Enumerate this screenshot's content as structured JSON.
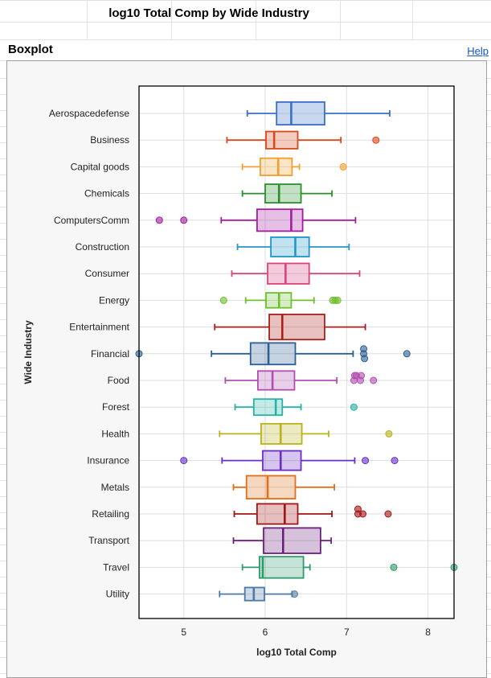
{
  "sheet": {
    "title": "log10 Total Comp by Wide Industry"
  },
  "panel": {
    "title": "Boxplot",
    "help_label": "Help"
  },
  "chart_data": {
    "type": "boxplot",
    "title": "",
    "xlabel": "log10 Total Comp",
    "ylabel": "Wide Industry",
    "xlim": [
      4.45,
      8.32
    ],
    "xticks": [
      5,
      6,
      7,
      8
    ],
    "grid": true,
    "legend": "none",
    "categories": [
      {
        "name": "Utility",
        "color": "#4e79a7",
        "whisker_low": 5.44,
        "q1": 5.75,
        "median": 5.86,
        "q3": 5.99,
        "whisker_high": 6.33,
        "outliers": [
          6.36
        ]
      },
      {
        "name": "Travel",
        "color": "#2e9c6e",
        "whisker_low": 5.72,
        "q1": 5.93,
        "median": 5.97,
        "q3": 6.47,
        "whisker_high": 6.55,
        "outliers": [
          7.58,
          8.32
        ]
      },
      {
        "name": "Transport",
        "color": "#6a1f7a",
        "whisker_low": 5.61,
        "q1": 5.98,
        "median": 6.22,
        "q3": 6.68,
        "whisker_high": 6.81,
        "outliers": []
      },
      {
        "name": "Retailing",
        "color": "#a31515",
        "whisker_low": 5.62,
        "q1": 5.9,
        "median": 6.24,
        "q3": 6.4,
        "whisker_high": 6.82,
        "outliers": [
          7.14,
          7.14,
          7.2,
          7.51
        ]
      },
      {
        "name": "Metals",
        "color": "#e0701a",
        "whisker_low": 5.61,
        "q1": 5.77,
        "median": 6.03,
        "q3": 6.37,
        "whisker_high": 6.85,
        "outliers": []
      },
      {
        "name": "Insurance",
        "color": "#6a2fc7",
        "whisker_low": 5.47,
        "q1": 5.97,
        "median": 6.19,
        "q3": 6.44,
        "whisker_high": 7.1,
        "outliers": [
          5.0,
          7.23,
          7.59
        ]
      },
      {
        "name": "Health",
        "color": "#b8b21c",
        "whisker_low": 5.44,
        "q1": 5.95,
        "median": 6.19,
        "q3": 6.45,
        "whisker_high": 6.78,
        "outliers": [
          7.52
        ]
      },
      {
        "name": "Forest",
        "color": "#26b3a5",
        "whisker_low": 5.63,
        "q1": 5.86,
        "median": 6.13,
        "q3": 6.21,
        "whisker_high": 6.44,
        "outliers": [
          7.09
        ]
      },
      {
        "name": "Food",
        "color": "#b04fb0",
        "whisker_low": 5.51,
        "q1": 5.91,
        "median": 6.09,
        "q3": 6.36,
        "whisker_high": 6.88,
        "outliers": [
          7.09,
          7.1,
          7.12,
          7.17,
          7.18,
          7.33
        ]
      },
      {
        "name": "Financial",
        "color": "#2c5f94",
        "whisker_low": 5.34,
        "q1": 5.82,
        "median": 6.04,
        "q3": 6.37,
        "whisker_high": 7.08,
        "outliers": [
          4.45,
          7.21,
          7.21,
          7.22,
          7.74
        ]
      },
      {
        "name": "Entertainment",
        "color": "#a8201a",
        "whisker_low": 5.38,
        "q1": 6.05,
        "median": 6.21,
        "q3": 6.73,
        "whisker_high": 7.23,
        "outliers": []
      },
      {
        "name": "Energy",
        "color": "#6fbf2f",
        "whisker_low": 5.76,
        "q1": 6.01,
        "median": 6.17,
        "q3": 6.32,
        "whisker_high": 6.6,
        "outliers": [
          5.49,
          6.83,
          6.86,
          6.89
        ]
      },
      {
        "name": "Consumer",
        "color": "#d9447a",
        "whisker_low": 5.59,
        "q1": 6.03,
        "median": 6.25,
        "q3": 6.54,
        "whisker_high": 7.16,
        "outliers": []
      },
      {
        "name": "Construction",
        "color": "#2197c7",
        "whisker_low": 5.66,
        "q1": 6.07,
        "median": 6.37,
        "q3": 6.54,
        "whisker_high": 7.03,
        "outliers": []
      },
      {
        "name": "ComputersComm",
        "color": "#a21e9e",
        "whisker_low": 5.46,
        "q1": 5.9,
        "median": 6.32,
        "q3": 6.46,
        "whisker_high": 7.11,
        "outliers": [
          4.7,
          5.0
        ]
      },
      {
        "name": "Chemicals",
        "color": "#2a8f2a",
        "whisker_low": 5.72,
        "q1": 6.0,
        "median": 6.17,
        "q3": 6.44,
        "whisker_high": 6.82,
        "outliers": []
      },
      {
        "name": "Capital goods",
        "color": "#f0a030",
        "whisker_low": 5.72,
        "q1": 5.94,
        "median": 6.16,
        "q3": 6.33,
        "whisker_high": 6.42,
        "outliers": [
          6.96
        ]
      },
      {
        "name": "Business",
        "color": "#d9481a",
        "whisker_low": 5.53,
        "q1": 6.01,
        "median": 6.11,
        "q3": 6.4,
        "whisker_high": 6.93,
        "outliers": [
          7.36
        ]
      },
      {
        "name": "Aerospacedefense",
        "color": "#3a6fc8",
        "whisker_low": 5.78,
        "q1": 6.14,
        "median": 6.32,
        "q3": 6.73,
        "whisker_high": 7.53,
        "outliers": []
      }
    ]
  }
}
